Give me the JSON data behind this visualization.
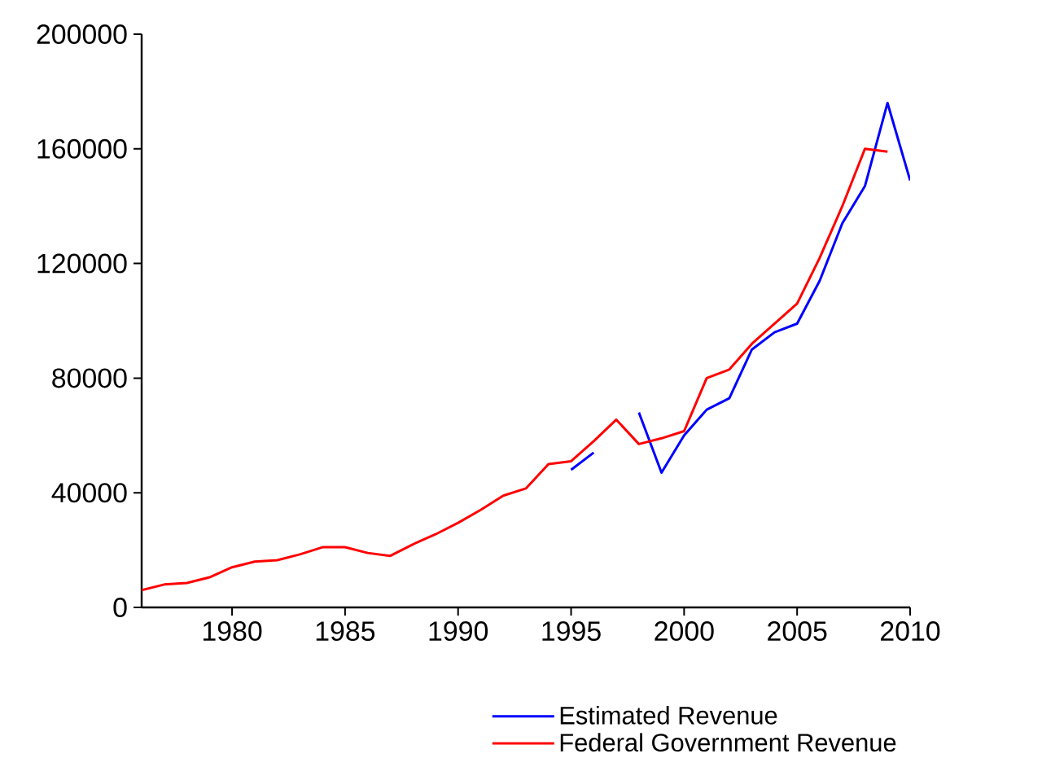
{
  "chart_data": {
    "type": "line",
    "series": [
      {
        "name": "Estimated Revenue",
        "color": "#0000ff",
        "x": [
          1995,
          1996,
          1997,
          1998,
          1999,
          2000,
          2001,
          2002,
          2003,
          2004,
          2005,
          2006,
          2007,
          2008,
          2009,
          2010
        ],
        "values": [
          48000,
          54000,
          null,
          68000,
          47000,
          60000,
          69000,
          73000,
          90000,
          96000,
          99000,
          114000,
          134000,
          147000,
          176000,
          149000
        ]
      },
      {
        "name": "Federal Government Revenue",
        "color": "#ff0000",
        "x": [
          1976,
          1977,
          1978,
          1979,
          1980,
          1981,
          1982,
          1983,
          1984,
          1985,
          1986,
          1987,
          1988,
          1989,
          1990,
          1991,
          1992,
          1993,
          1994,
          1995,
          1996,
          1997,
          1998,
          1999,
          2000,
          2001,
          2002,
          2003,
          2004,
          2005,
          2006,
          2007,
          2008,
          2009
        ],
        "values": [
          6000,
          8000,
          8500,
          10500,
          14000,
          16000,
          16500,
          18500,
          21000,
          21000,
          19000,
          18000,
          22000,
          25500,
          29500,
          34000,
          39000,
          41500,
          50000,
          51000,
          58000,
          65500,
          57000,
          59000,
          61500,
          80000,
          83000,
          92000,
          99000,
          106000,
          122000,
          140000,
          160000,
          159000
        ]
      }
    ],
    "xlim": [
      1976,
      2010
    ],
    "ylim": [
      0,
      200000
    ],
    "xticks": [
      1980,
      1985,
      1990,
      1995,
      2000,
      2005,
      2010
    ],
    "yticks": [
      0,
      40000,
      80000,
      120000,
      160000,
      200000
    ],
    "legend": "bottom",
    "marker": "none",
    "line_style": "solid"
  }
}
